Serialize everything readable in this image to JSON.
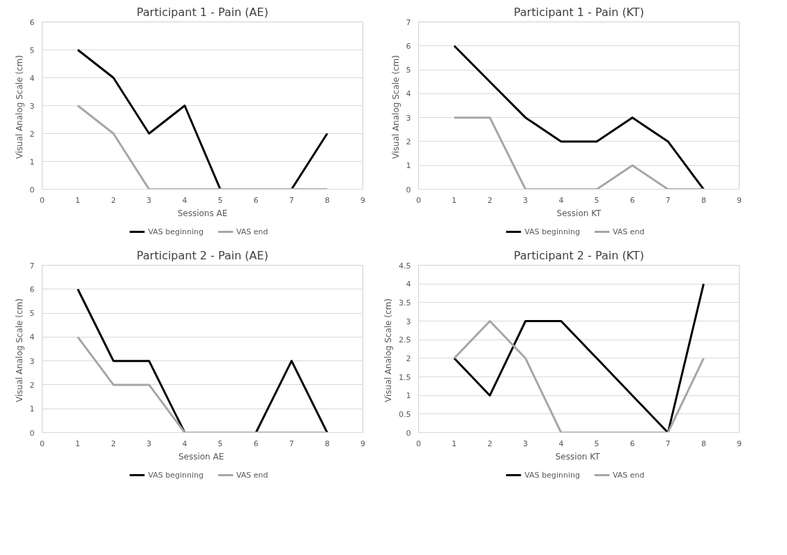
{
  "chart_data": [
    {
      "type": "line",
      "title": "Participant 1 - Pain (AE)",
      "xlabel": "Sessions AE",
      "ylabel": "Visual Analog Scale  (cm)",
      "x": [
        1,
        2,
        3,
        4,
        5,
        6,
        7,
        8
      ],
      "xlim": [
        0,
        9
      ],
      "xticks": [
        0,
        1,
        2,
        3,
        4,
        5,
        6,
        7,
        8,
        9
      ],
      "ylim": [
        0,
        6
      ],
      "yticks": [
        0,
        1,
        2,
        3,
        4,
        5,
        6
      ],
      "grid": "y",
      "legend": "bottom",
      "line_style": "solid",
      "series": [
        {
          "name": "VAS beginning",
          "color": "#000000",
          "values": [
            5,
            4,
            2,
            3,
            0,
            0,
            0,
            2
          ]
        },
        {
          "name": "VAS end",
          "color": "#a6a6a6",
          "values": [
            3,
            2,
            0,
            0,
            0,
            0,
            0,
            0
          ]
        }
      ]
    },
    {
      "type": "line",
      "title": "Participant 1 - Pain (KT)",
      "xlabel": "Session KT",
      "ylabel": "Visual Analog Scale  (cm)",
      "x": [
        1,
        2,
        3,
        4,
        5,
        6,
        7,
        8
      ],
      "xlim": [
        0,
        9
      ],
      "xticks": [
        0,
        1,
        2,
        3,
        4,
        5,
        6,
        7,
        8,
        9
      ],
      "ylim": [
        0,
        7
      ],
      "yticks": [
        0,
        1,
        2,
        3,
        4,
        5,
        6,
        7
      ],
      "grid": "y",
      "legend": "bottom",
      "line_style": "solid",
      "series": [
        {
          "name": "VAS beginning",
          "color": "#000000",
          "values": [
            6,
            4.5,
            3,
            2,
            2,
            3,
            2,
            0
          ]
        },
        {
          "name": "VAS end",
          "color": "#a6a6a6",
          "values": [
            3,
            3,
            0,
            0,
            0,
            1,
            0,
            0
          ]
        }
      ]
    },
    {
      "type": "line",
      "title": "Participant 2 - Pain (AE)",
      "xlabel": "Session  AE",
      "ylabel": "Visual Analog Scale  (cm)",
      "x": [
        1,
        2,
        3,
        4,
        5,
        6,
        7,
        8
      ],
      "xlim": [
        0,
        9
      ],
      "xticks": [
        0,
        1,
        2,
        3,
        4,
        5,
        6,
        7,
        8,
        9
      ],
      "ylim": [
        0,
        7
      ],
      "yticks": [
        0,
        1,
        2,
        3,
        4,
        5,
        6,
        7
      ],
      "grid": "y",
      "legend": "bottom",
      "line_style": "solid",
      "series": [
        {
          "name": "VAS beginning",
          "color": "#000000",
          "values": [
            6,
            3,
            3,
            0,
            0,
            0,
            3,
            0
          ]
        },
        {
          "name": "VAS end",
          "color": "#a6a6a6",
          "values": [
            4,
            2,
            2,
            0,
            0,
            0,
            0,
            0
          ]
        }
      ]
    },
    {
      "type": "line",
      "title": "Participant 2 - Pain (KT)",
      "xlabel": "Session  KT",
      "ylabel": "Visual Analog Scale  (cm)",
      "x": [
        1,
        2,
        3,
        4,
        5,
        6,
        7,
        8
      ],
      "xlim": [
        0,
        9
      ],
      "xticks": [
        0,
        1,
        2,
        3,
        4,
        5,
        6,
        7,
        8,
        9
      ],
      "ylim": [
        0,
        4.5
      ],
      "yticks": [
        0,
        0.5,
        1,
        1.5,
        2,
        2.5,
        3,
        3.5,
        4,
        4.5
      ],
      "grid": "y",
      "legend": "bottom",
      "line_style": "solid",
      "series": [
        {
          "name": "VAS beginning",
          "color": "#000000",
          "values": [
            2,
            1,
            3,
            3,
            2,
            1,
            0,
            4
          ]
        },
        {
          "name": "VAS end",
          "color": "#a6a6a6",
          "values": [
            2,
            3,
            2,
            0,
            0,
            0,
            0,
            2
          ]
        }
      ]
    }
  ]
}
